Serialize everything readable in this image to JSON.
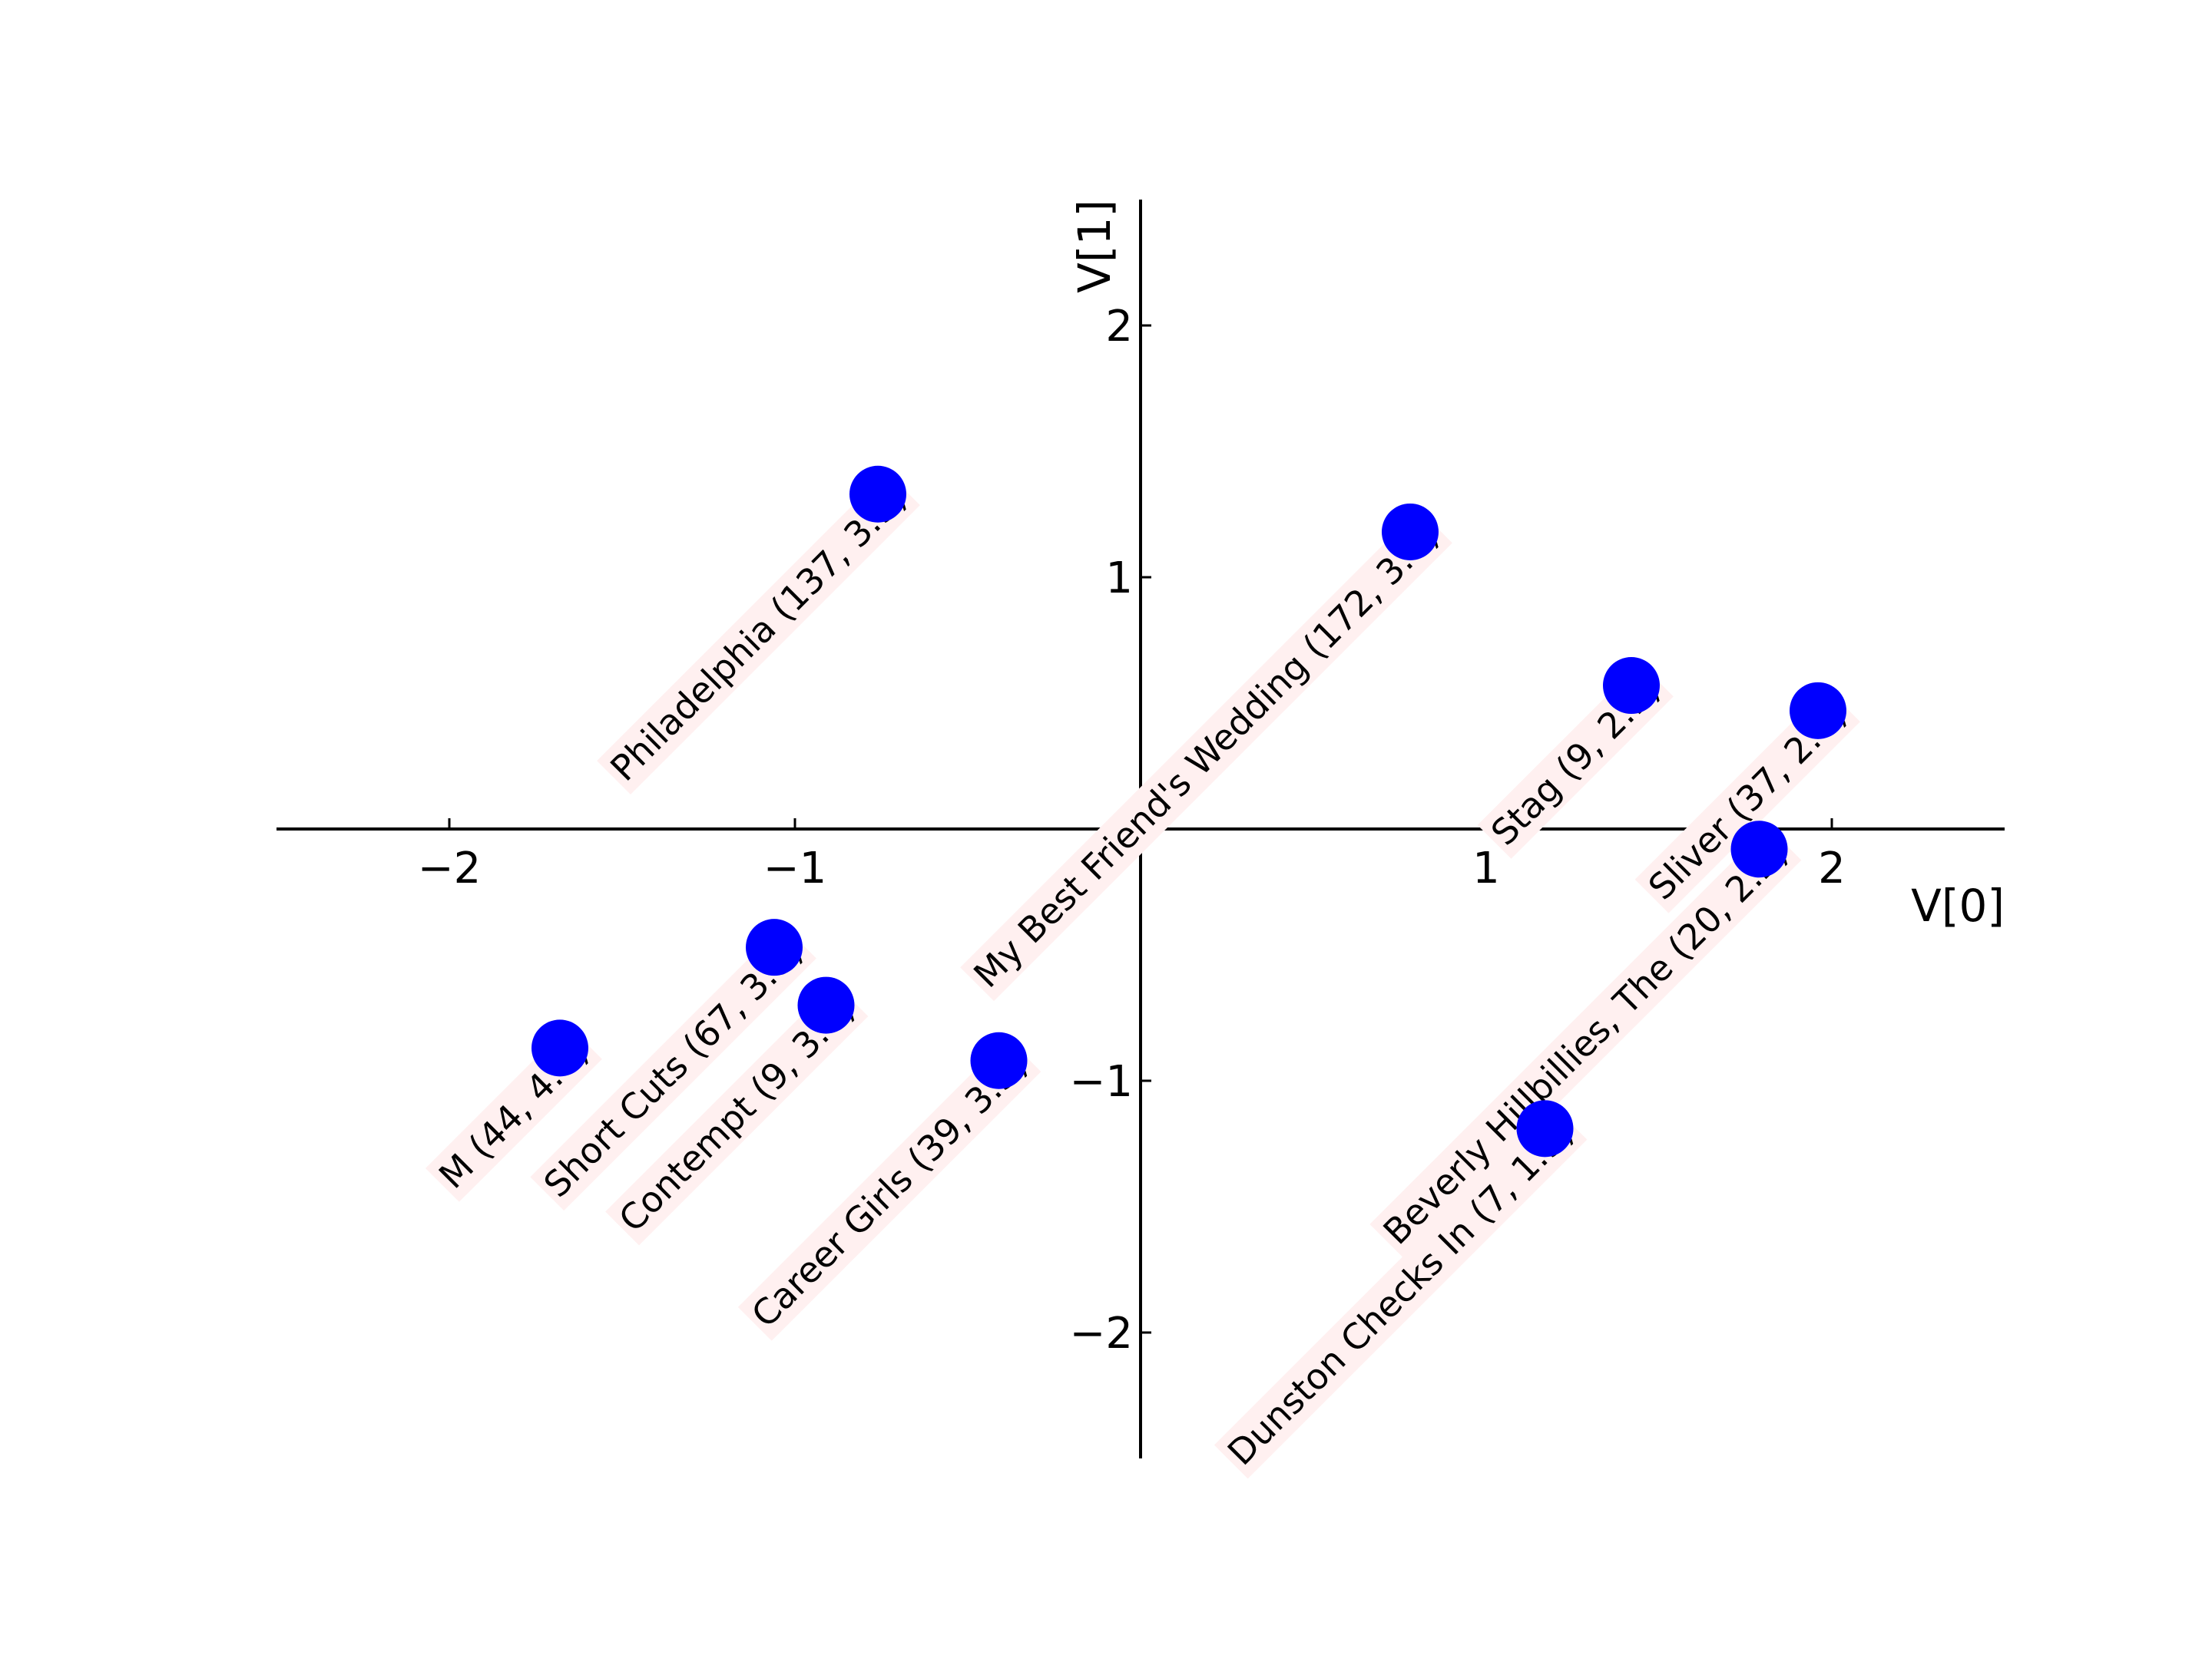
{
  "chart_data": {
    "type": "scatter",
    "title": "",
    "xlabel": "V[0]",
    "ylabel": "V[1]",
    "xlim": [
      -2.5,
      2.5
    ],
    "ylim": [
      -2.5,
      2.5
    ],
    "xticks": [
      -2,
      -1,
      1,
      2
    ],
    "yticks": [
      -2,
      -1,
      1,
      2
    ],
    "xtick_labels": [
      "−2",
      "−1",
      "1",
      "2"
    ],
    "ytick_labels": [
      "−2",
      "−1",
      "1",
      "2"
    ],
    "grid": false,
    "marker_color": "#0000ff",
    "label_background": "#fff0f0",
    "points": [
      {
        "x": -0.76,
        "y": 1.33,
        "label": "Philadelphia (137, 3.9)"
      },
      {
        "x": 0.78,
        "y": 1.18,
        "label": "My Best Friend's Wedding (172, 3.4)"
      },
      {
        "x": 1.42,
        "y": 0.57,
        "label": "Stag (9, 2.1)"
      },
      {
        "x": 1.96,
        "y": 0.47,
        "label": "Sliver (37, 2.4)"
      },
      {
        "x": 1.79,
        "y": -0.08,
        "label": "Beverly Hillbillies, The (20, 2.2)"
      },
      {
        "x": 1.17,
        "y": -1.19,
        "label": "Dunston Checks In (7, 1.9)"
      },
      {
        "x": -1.06,
        "y": -0.47,
        "label": "Short Cuts (67, 3.8)"
      },
      {
        "x": -0.91,
        "y": -0.7,
        "label": "Contempt (9, 3.0)"
      },
      {
        "x": -0.41,
        "y": -0.92,
        "label": "Career Girls (39, 3.3)"
      },
      {
        "x": -1.68,
        "y": -0.87,
        "label": "M (44, 4.0)"
      }
    ]
  }
}
